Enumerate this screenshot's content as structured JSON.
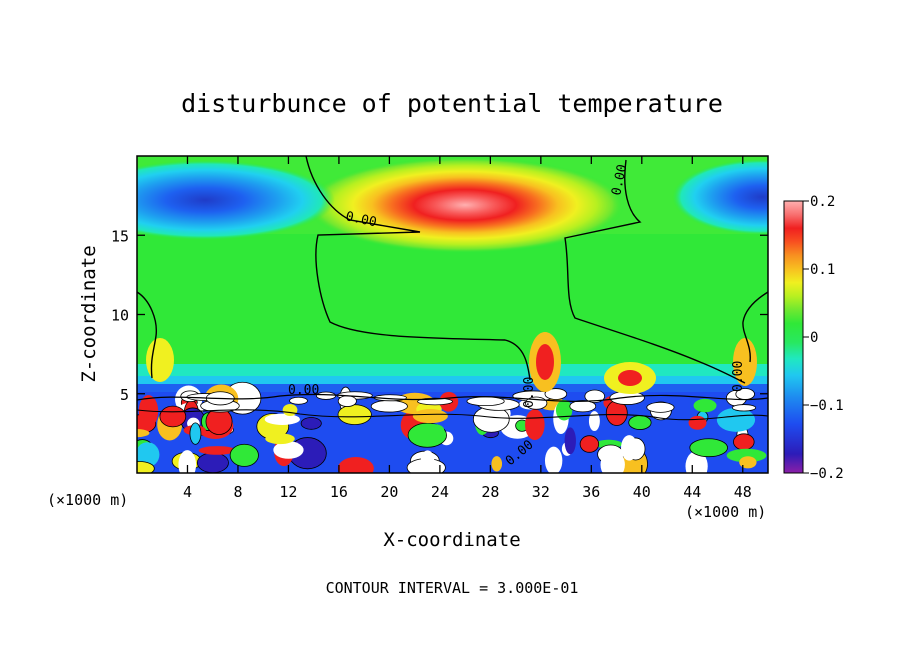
{
  "chart_data": {
    "type": "heatmap",
    "title": "disturbunce of potential temperature",
    "xlabel": "X-coordinate",
    "ylabel": "Z-coordinate",
    "x_unit": "(×1000 m)",
    "x_unit_right": "(×1000 m)",
    "footer": "CONTOUR INTERVAL = 3.000E-01",
    "xlim": [
      0,
      50
    ],
    "ylim": [
      0,
      20
    ],
    "x_ticks": [
      4,
      8,
      12,
      16,
      20,
      24,
      28,
      32,
      36,
      40,
      44,
      48
    ],
    "x_tick_labels": [
      "4",
      "8",
      "12",
      "16",
      "20",
      "24",
      "28",
      "32",
      "36",
      "40",
      "44",
      "48"
    ],
    "y_ticks": [
      5,
      10,
      15
    ],
    "y_tick_labels": [
      "5",
      "10",
      "15"
    ],
    "colorbar": {
      "range": [
        -0.2,
        0.2
      ],
      "tick_labels": [
        "0.2",
        "0.1",
        "0",
        "−0.1",
        "−0.2"
      ],
      "tick_values": [
        0.2,
        0.1,
        0,
        -0.1,
        -0.2
      ],
      "colors": [
        "#8b1fa8",
        "#2c1cb8",
        "#1e4cf0",
        "#1e8cf0",
        "#20c8f0",
        "#20e8c0",
        "#28e860",
        "#30e838",
        "#70e830",
        "#b8f020",
        "#f0f020",
        "#f8c020",
        "#f89020",
        "#f85020",
        "#f02020",
        "#e01818",
        "#f87070",
        "#ffb0b0"
      ]
    },
    "contour_label": "0.00",
    "features": [
      {
        "kind": "warm-core",
        "x": 25.5,
        "z": 16.8,
        "value": 0.2
      },
      {
        "kind": "cold-core",
        "x": 4.5,
        "z": 17.2,
        "value": -0.13
      },
      {
        "kind": "cold-core",
        "x": 48.5,
        "z": 17.5,
        "value": -0.12
      }
    ]
  }
}
